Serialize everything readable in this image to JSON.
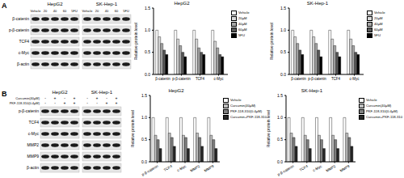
{
  "panels": [
    {
      "label": "A",
      "cell_lines": [
        "HepG2",
        "SK-Hep-1"
      ],
      "columns": [
        "Vehicle",
        "20",
        "40",
        "60",
        "5FU"
      ],
      "rows": [
        "β-catenin",
        "p-β-catenin",
        "TCF4",
        "c-Myc",
        "β-actin"
      ]
    },
    {
      "label": "B",
      "cell_lines": [
        "HepG2",
        "SK-Hep-1"
      ],
      "treatments": [
        {
          "name": "Curcumin(40μM)",
          "signs": [
            "-",
            "+",
            "-",
            "+"
          ]
        },
        {
          "name": "PKF-118-310(0.4μM)",
          "signs": [
            "-",
            "-",
            "+",
            "+"
          ]
        }
      ],
      "rows": [
        "p-β-catenin",
        "TCF4",
        "c-Myc",
        "MMP2",
        "MMP9",
        "β-actin"
      ]
    }
  ],
  "chart_data": [
    {
      "type": "bar",
      "title": "HepG2",
      "y_label": "Relative protein level",
      "categories": [
        "β-catenin",
        "p-β-catenin",
        "TCF4",
        "c-Myc"
      ],
      "series": [
        {
          "name": "Vehicle",
          "color": "#ffffff",
          "values": [
            1,
            1,
            1,
            1
          ]
        },
        {
          "name": "20μM",
          "color": "#d9d9d9",
          "values": [
            0.85,
            0.8,
            0.8,
            0.75
          ]
        },
        {
          "name": "40μM",
          "color": "#a6a6a6",
          "values": [
            0.7,
            0.65,
            0.6,
            0.6
          ]
        },
        {
          "name": "60μM",
          "color": "#595959",
          "values": [
            0.55,
            0.5,
            0.5,
            0.45
          ]
        },
        {
          "name": "5FU",
          "color": "#000000",
          "values": [
            0.45,
            0.4,
            0.45,
            0.4
          ]
        }
      ],
      "ylim": [
        0,
        1.5
      ],
      "yticks": [
        {
          "value": 0,
          "label": "0.0"
        },
        {
          "value": 0.5,
          "label": "0.5"
        },
        {
          "value": 1,
          "label": "1.0"
        },
        {
          "value": 1.5,
          "label": "1.5"
        }
      ],
      "grid": false,
      "legend": "right"
    },
    {
      "type": "bar",
      "title": "SK-Hep-1",
      "y_label": "Relative protein level",
      "categories": [
        "β-catenin",
        "p-β-catenin",
        "TCF4",
        "c-Myc"
      ],
      "series": [
        {
          "name": "Vehicle",
          "color": "#ffffff",
          "values": [
            1,
            1,
            1,
            1
          ]
        },
        {
          "name": "20μM",
          "color": "#d9d9d9",
          "values": [
            0.85,
            0.85,
            0.8,
            0.8
          ]
        },
        {
          "name": "40μM",
          "color": "#a6a6a6",
          "values": [
            0.7,
            0.7,
            0.65,
            0.65
          ]
        },
        {
          "name": "60μM",
          "color": "#595959",
          "values": [
            0.55,
            0.55,
            0.5,
            0.5
          ]
        },
        {
          "name": "5FU",
          "color": "#000000",
          "values": [
            0.45,
            0.4,
            0.4,
            0.45
          ]
        }
      ],
      "ylim": [
        0,
        1.5
      ],
      "yticks": [
        {
          "value": 0,
          "label": "0.0"
        },
        {
          "value": 0.5,
          "label": "0.5"
        },
        {
          "value": 1,
          "label": "1.0"
        },
        {
          "value": 1.5,
          "label": "1.5"
        }
      ],
      "grid": false,
      "legend": "right"
    },
    {
      "type": "bar",
      "title": "HepG2",
      "y_label": "Relative protein level",
      "categories": [
        "p-β-catenin",
        "TCF4",
        "c-Myc",
        "MMP2",
        "MMP9"
      ],
      "series": [
        {
          "name": "Vehicle",
          "color": "#ffffff",
          "values": [
            1,
            1,
            1,
            1,
            1
          ]
        },
        {
          "name": "Curcumin(40μM)",
          "color": "#bfbfbf",
          "values": [
            0.6,
            0.65,
            0.6,
            0.65,
            0.6
          ]
        },
        {
          "name": "PKF-118-310(0.4μM)",
          "color": "#7f7f7f",
          "values": [
            0.5,
            0.55,
            0.55,
            0.55,
            0.5
          ]
        },
        {
          "name": "Curcumin+PKF-118-310",
          "color": "#262626",
          "values": [
            0.3,
            0.35,
            0.3,
            0.35,
            0.3
          ]
        }
      ],
      "ylim": [
        0,
        1.5
      ],
      "yticks": [
        {
          "value": 0,
          "label": "0.0"
        },
        {
          "value": 0.5,
          "label": "0.5"
        },
        {
          "value": 1,
          "label": "1.0"
        },
        {
          "value": 1.5,
          "label": "1.5"
        }
      ],
      "grid": false,
      "legend": "right"
    },
    {
      "type": "bar",
      "title": "SK-Hep-1",
      "y_label": "Relative protein level",
      "categories": [
        "p-β-catenin",
        "TCF4",
        "c-Myc",
        "MMP2",
        "MMP9"
      ],
      "series": [
        {
          "name": "Vehicle",
          "color": "#ffffff",
          "values": [
            1,
            1,
            1,
            1,
            1
          ]
        },
        {
          "name": "Curcumin(40μM)",
          "color": "#bfbfbf",
          "values": [
            0.65,
            0.6,
            0.6,
            0.6,
            0.65
          ]
        },
        {
          "name": "PKF-118-310(0.4μM)",
          "color": "#7f7f7f",
          "values": [
            0.55,
            0.5,
            0.5,
            0.5,
            0.55
          ]
        },
        {
          "name": "Curcumin+PKF-118-310",
          "color": "#262626",
          "values": [
            0.35,
            0.3,
            0.3,
            0.3,
            0.35
          ]
        }
      ],
      "ylim": [
        0,
        1.5
      ],
      "yticks": [
        {
          "value": 0,
          "label": "0.0"
        },
        {
          "value": 0.5,
          "label": "0.5"
        },
        {
          "value": 1,
          "label": "1.0"
        },
        {
          "value": 1.5,
          "label": "1.5"
        }
      ],
      "grid": false,
      "legend": "right"
    }
  ]
}
